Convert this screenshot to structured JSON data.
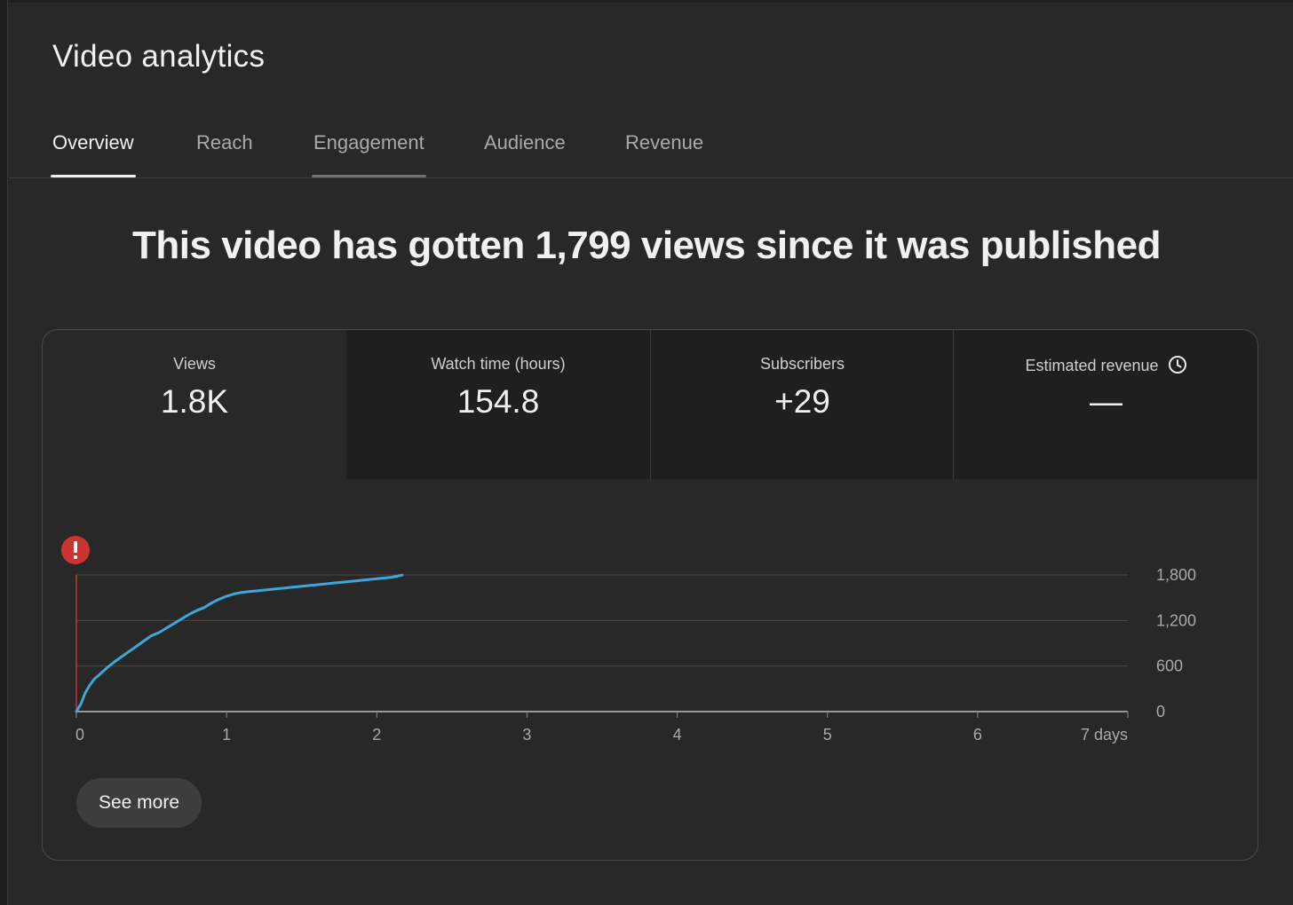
{
  "page": {
    "title": "Video analytics"
  },
  "tabs": [
    {
      "label": "Overview",
      "active": true
    },
    {
      "label": "Reach",
      "active": false
    },
    {
      "label": "Engagement",
      "active": false
    },
    {
      "label": "Audience",
      "active": false
    },
    {
      "label": "Revenue",
      "active": false
    }
  ],
  "headline": "This video has gotten 1,799 views since it was published",
  "metrics": [
    {
      "label": "Views",
      "value": "1.8K"
    },
    {
      "label": "Watch time (hours)",
      "value": "154.8"
    },
    {
      "label": "Subscribers",
      "value": "+29"
    },
    {
      "label": "Estimated revenue",
      "value": "—",
      "icon": "clock-icon"
    }
  ],
  "colors": {
    "line": "#3ea6d8",
    "alert": "#cc3333",
    "publish_marker": "#cc3333"
  },
  "chart_data": {
    "type": "line",
    "series": [
      {
        "x": [
          0,
          0.03,
          0.06,
          0.09,
          0.12,
          0.15,
          0.2,
          0.25,
          0.3,
          0.35,
          0.4,
          0.45,
          0.5,
          0.55,
          0.6,
          0.65,
          0.7,
          0.75,
          0.8,
          0.85,
          0.9,
          0.95,
          1.0,
          1.05,
          1.1,
          1.15,
          1.2,
          1.3,
          1.4,
          1.5,
          1.6,
          1.7,
          1.8,
          1.9,
          2.0,
          2.1,
          2.17
        ],
        "y": [
          0,
          100,
          250,
          350,
          430,
          480,
          570,
          650,
          720,
          790,
          860,
          930,
          1000,
          1040,
          1100,
          1160,
          1220,
          1280,
          1330,
          1370,
          1430,
          1480,
          1520,
          1550,
          1570,
          1580,
          1590,
          1610,
          1630,
          1650,
          1670,
          1690,
          1710,
          1730,
          1750,
          1770,
          1799
        ]
      }
    ],
    "x_ticks": [
      "0",
      "1",
      "2",
      "3",
      "4",
      "5",
      "6",
      "7 days"
    ],
    "y_ticks": [
      "1,800",
      "1,200",
      "600",
      "0"
    ],
    "xlim": [
      0,
      7
    ],
    "ylim": [
      0,
      1800
    ],
    "grid": true
  },
  "buttons": {
    "see_more": "See more"
  }
}
